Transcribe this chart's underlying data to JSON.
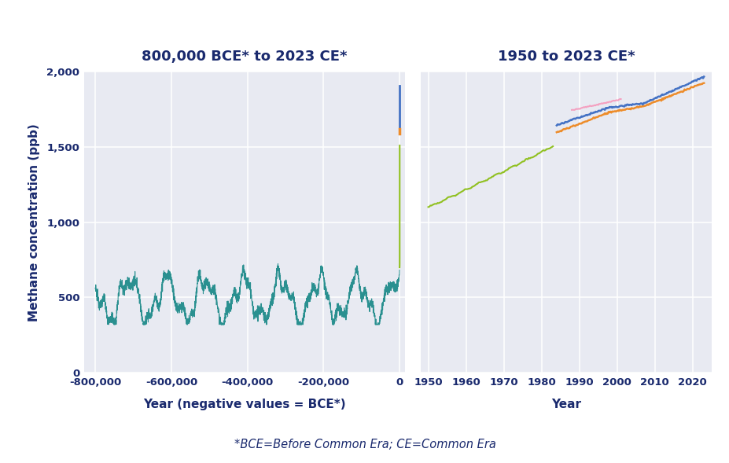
{
  "title_left": "800,000 BCE* to 2023 CE*",
  "title_right": "1950 to 2023 CE*",
  "xlabel_left": "Year (negative values = BCE*)",
  "xlabel_right": "Year",
  "ylabel": "Methane concentration (ppb)",
  "footnote": "*BCE=Before Common Era; CE=Common Era",
  "bg_color": "#ffffff",
  "plot_bg_color": "#e8eaf2",
  "title_color": "#1a2a6e",
  "axis_color": "#1a2a6e",
  "grid_color": "#ffffff",
  "ylim": [
    0,
    2000
  ],
  "yticks": [
    0,
    500,
    1000,
    1500,
    2000
  ],
  "ytick_labels": [
    "0",
    "500",
    "1,000",
    "1,500",
    "2,000"
  ],
  "xlim_left": [
    -830000,
    15000
  ],
  "xticks_left": [
    -800000,
    -600000,
    -400000,
    -200000,
    0
  ],
  "xtick_labels_left": [
    "-800,000",
    "-600,000",
    "-400,000",
    "-200,000",
    "0"
  ],
  "xlim_right": [
    1948,
    2025
  ],
  "xticks_right": [
    1950,
    1960,
    1970,
    1980,
    1990,
    2000,
    2010,
    2020
  ],
  "xtick_labels_right": [
    "1950",
    "1960",
    "1970",
    "1980",
    "1990",
    "2000",
    "2010",
    "2020"
  ],
  "color_teal": "#2a9090",
  "color_green": "#90c020",
  "color_blue": "#4472c4",
  "color_orange": "#ed8c2a",
  "color_pink": "#f4a0c0"
}
